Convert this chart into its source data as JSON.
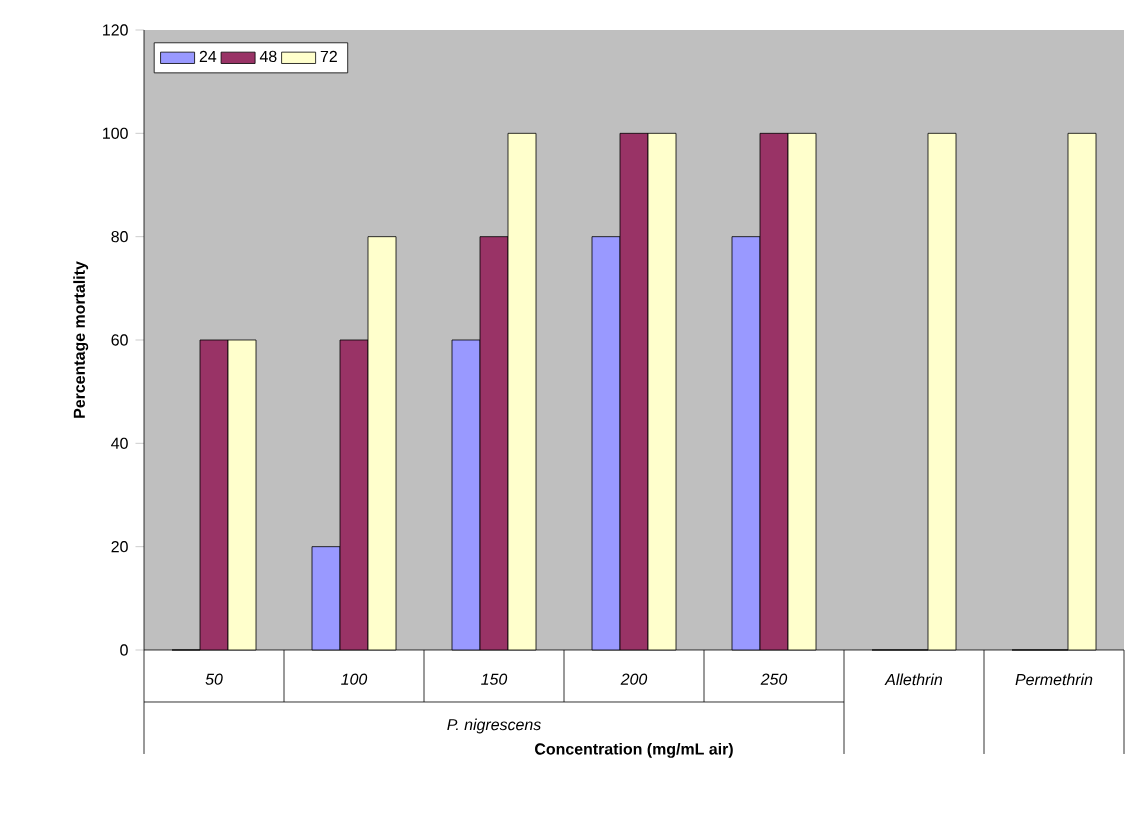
{
  "chart_data": {
    "type": "bar",
    "xlabel": "Concentration (mg/mL air)",
    "ylabel": "Percentage mortality",
    "categories": [
      "50",
      "100",
      "150",
      "200",
      "250",
      "Allethrin",
      "Permethrin"
    ],
    "series": [
      {
        "name": "24",
        "color": "#9999ff",
        "values": [
          0,
          20,
          60,
          80,
          80,
          0,
          0
        ]
      },
      {
        "name": "48",
        "color": "#993366",
        "values": [
          60,
          60,
          80,
          100,
          100,
          0,
          0
        ]
      },
      {
        "name": "72",
        "color": "#ffffcc",
        "values": [
          60,
          80,
          100,
          100,
          100,
          100,
          100
        ]
      }
    ],
    "annotations": [
      "P. nigrescens"
    ],
    "ylim": [
      0,
      120
    ],
    "yticks": [
      0,
      20,
      40,
      60,
      80,
      100,
      120
    ],
    "grid": false,
    "legend": "top left"
  }
}
